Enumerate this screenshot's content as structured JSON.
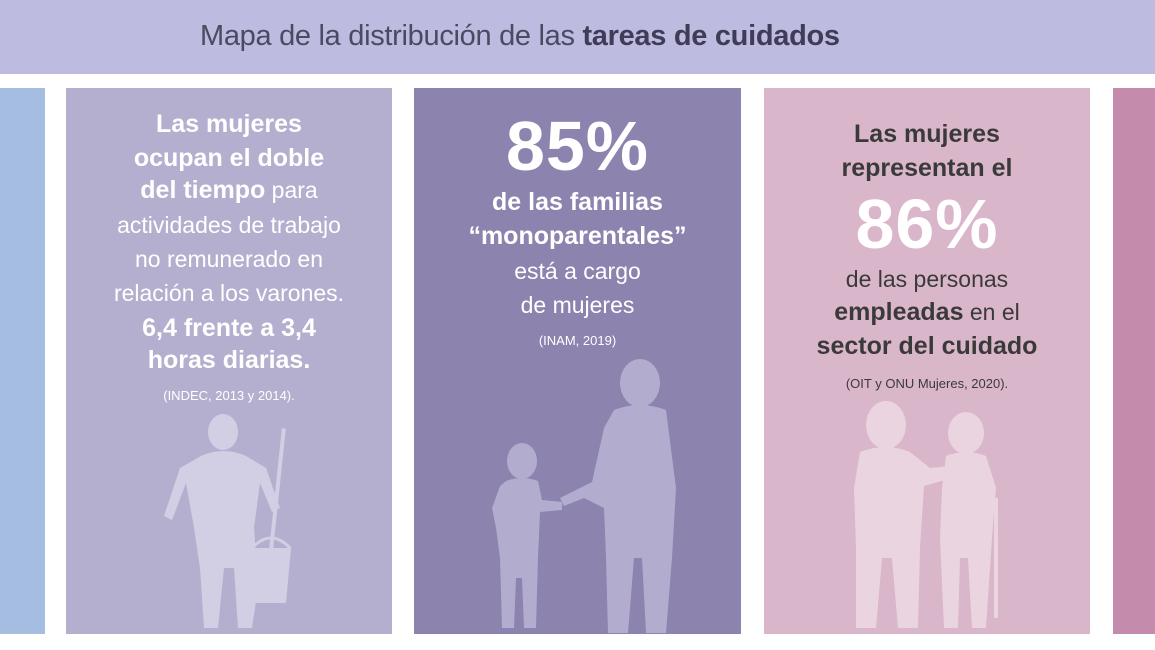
{
  "header": {
    "title_regular": "Mapa de la distribución de las ",
    "title_bold": "tareas de cuidados"
  },
  "panel1": {
    "line1": "Las mujeres",
    "line2": "ocupan el doble",
    "line3_bold": "del tiempo",
    "line3_regular": " para",
    "line4": "actividades de trabajo",
    "line5": "no remunerado en",
    "line6": "relación a los varones.",
    "line7": "6,4 frente a 3,4",
    "line8": "horas diarias.",
    "source": "(INDEC, 2013 y 2014)."
  },
  "panel2": {
    "percent": "85%",
    "line1": "de las familias",
    "line2": "“monoparentales”",
    "line3": "está a cargo",
    "line4": "de mujeres",
    "source": "(INAM, 2019)"
  },
  "panel3": {
    "line1": "Las mujeres",
    "line2": "representan el",
    "percent": "86%",
    "line3": "de las personas",
    "line4_bold": "empleadas",
    "line4_regular": " en el",
    "line5": "sector del cuidado",
    "source": "(OIT y ONU Mujeres, 2020)."
  },
  "colors": {
    "banner": "#bdbbe0",
    "panel_edge_left": "#a6bde2",
    "panel1": "#b4afcf",
    "panel2": "#8c83ae",
    "panel3": "#dab6cb",
    "panel_edge_right": "#c48bad"
  },
  "icons": {
    "panel1": "woman-with-mop-and-bucket-silhouette",
    "panel2": "mother-and-child-silhouette",
    "panel3": "caregiver-and-elderly-person-silhouette"
  }
}
